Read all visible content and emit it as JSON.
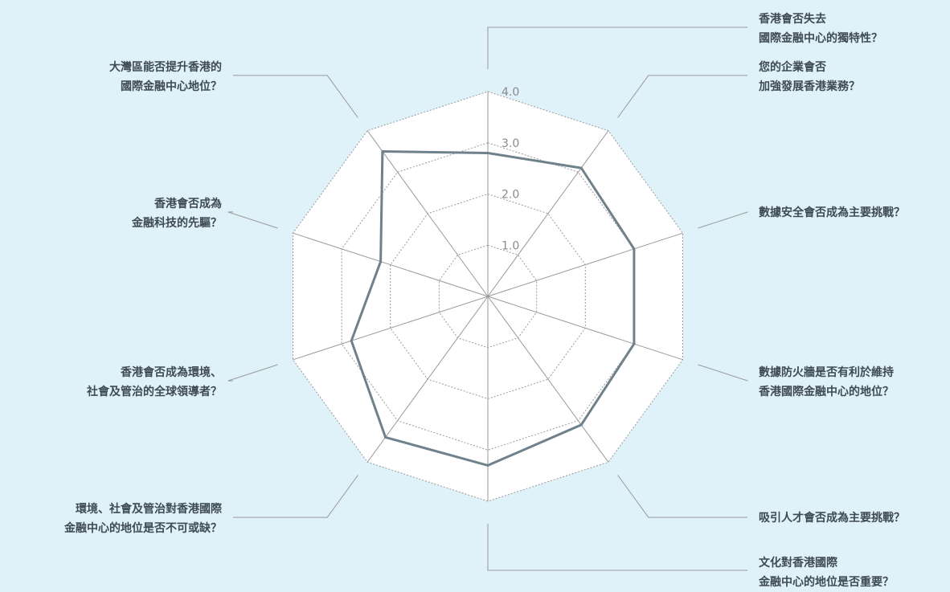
{
  "chart_data": {
    "type": "radar",
    "title": "",
    "axes": [
      {
        "lines": [
          "香港會否失去",
          "國際金融中心的獨特性？"
        ]
      },
      {
        "lines": [
          "您的企業會否",
          "加強發展香港業務？"
        ]
      },
      {
        "lines": [
          "數據安全會否成為主要挑戰？"
        ]
      },
      {
        "lines": [
          "數據防火牆是否有利於維持",
          "香港國際金融中心的地位？"
        ]
      },
      {
        "lines": [
          "吸引人才會否成為主要挑戰？"
        ]
      },
      {
        "lines": [
          "文化對香港國際",
          "金融中心的地位是否重要？"
        ]
      },
      {
        "lines": [
          "環境、社會及管治對香港國際",
          "金融中心的地位是否不可或缺？"
        ]
      },
      {
        "lines": [
          "香港會否成為環境、",
          "社會及管治的全球領導者？"
        ]
      },
      {
        "lines": [
          "香港會否成為",
          "金融科技的先驅？"
        ]
      },
      {
        "lines": [
          "大灣區能否提升香港的",
          "國際金融中心地位？"
        ]
      }
    ],
    "ticks": [
      "1.0",
      "2.0",
      "3.0",
      "4.0"
    ],
    "rmin": 0,
    "rmax": 4.0,
    "grid": true,
    "series": [
      {
        "values": [
          2.8,
          3.1,
          3.0,
          3.0,
          3.1,
          3.3,
          3.4,
          2.8,
          2.2,
          3.5
        ]
      }
    ],
    "colors": {
      "background": "#dff1f9",
      "plot_fill": "#ffffff",
      "grid": "#9a9a9a",
      "spokes": "#9a9a9a",
      "series_line": "#6f818b",
      "leader_line": "#9a9a9a",
      "label_text": "#3f4a52",
      "tick_text": "#8a8a8a"
    }
  }
}
